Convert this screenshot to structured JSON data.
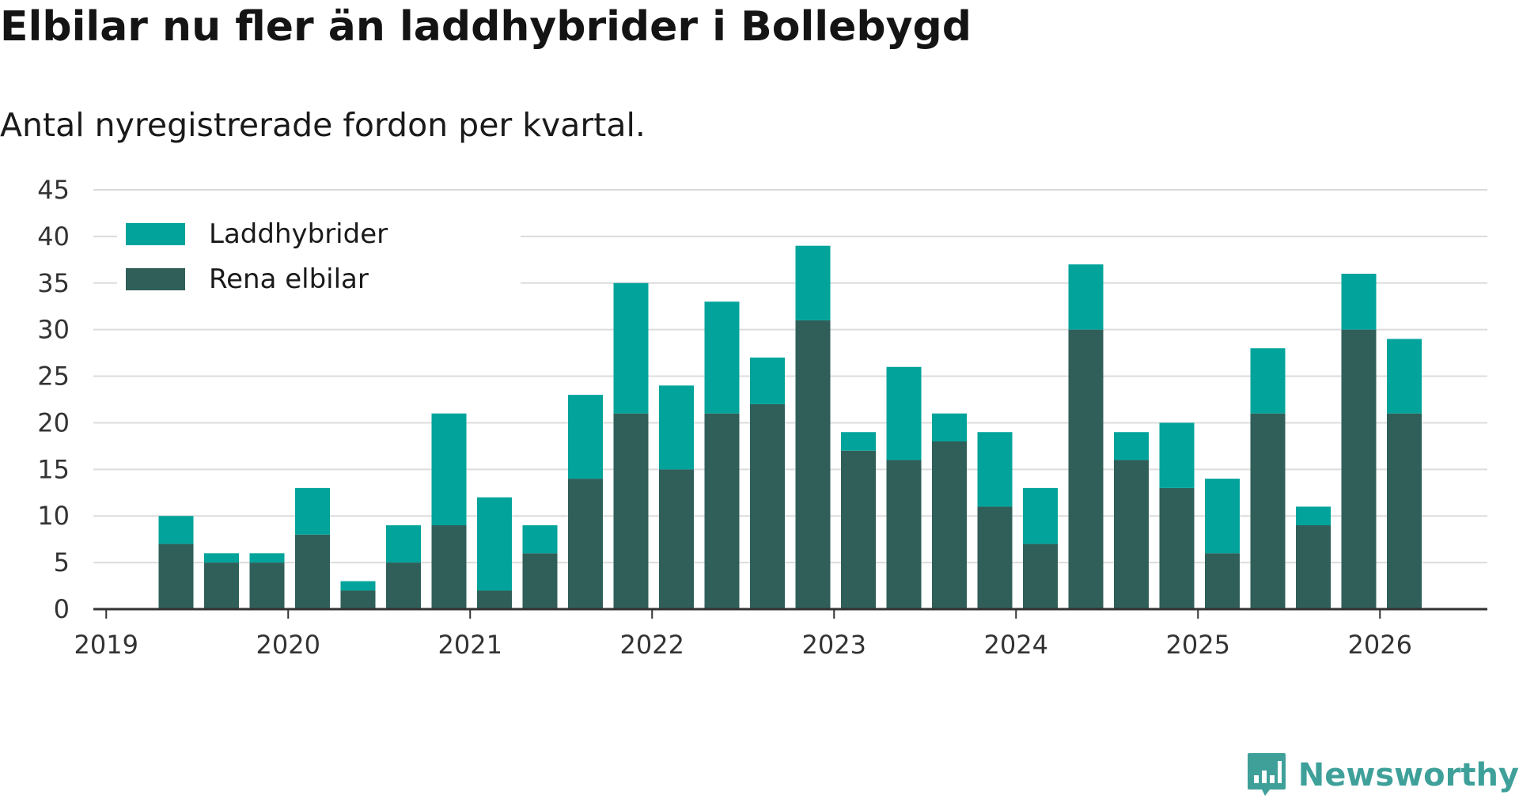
{
  "title": "Elbilar nu fler än laddhybrider i Bollebygd",
  "subtitle": "Antal nyregistrerade fordon per kvartal.",
  "logo": {
    "text": "Newsworthy",
    "icon": "bar-chart-speech-bubble-icon"
  },
  "colors": {
    "plugin_hybrid": "#02a39b",
    "electric": "#2f5f58",
    "grid": "#dcdcdc",
    "axis": "#333333"
  },
  "chart_data": {
    "type": "bar",
    "stacked": true,
    "title": "Elbilar nu fler än laddhybrider i Bollebygd",
    "subtitle": "Antal nyregistrerade fordon per kvartal.",
    "xlabel": "",
    "ylabel": "",
    "ylim": [
      0,
      45
    ],
    "y_ticks": [
      "0",
      "5",
      "10",
      "15",
      "20",
      "25",
      "30",
      "35",
      "40",
      "45"
    ],
    "x_ticks": [
      "2019",
      "2020",
      "2021",
      "2022",
      "2023",
      "2024",
      "2025",
      "2026"
    ],
    "legend_position": "top-left",
    "grid": true,
    "categories": [
      "2019-Q2",
      "2019-Q3",
      "2019-Q4",
      "2020-Q1",
      "2020-Q2",
      "2020-Q3",
      "2020-Q4",
      "2021-Q1",
      "2021-Q2",
      "2021-Q3",
      "2021-Q4",
      "2022-Q1",
      "2022-Q2",
      "2022-Q3",
      "2022-Q4",
      "2023-Q1",
      "2023-Q2",
      "2023-Q3",
      "2023-Q4",
      "2024-Q1",
      "2024-Q2",
      "2024-Q3",
      "2024-Q4",
      "2025-Q1",
      "2025-Q2",
      "2025-Q3",
      "2025-Q4",
      "2026-Q1"
    ],
    "series": [
      {
        "name": "Rena elbilar",
        "color": "#2f5f58",
        "values": [
          7,
          5,
          5,
          8,
          2,
          5,
          9,
          2,
          6,
          14,
          21,
          15,
          21,
          22,
          31,
          17,
          16,
          18,
          11,
          7,
          30,
          16,
          13,
          6,
          21,
          9,
          30,
          21
        ]
      },
      {
        "name": "Laddhybrider",
        "color": "#02a39b",
        "values": [
          3,
          1,
          1,
          5,
          1,
          4,
          12,
          10,
          3,
          9,
          14,
          9,
          12,
          5,
          8,
          2,
          10,
          3,
          8,
          6,
          7,
          3,
          7,
          8,
          7,
          2,
          6,
          8
        ]
      }
    ]
  }
}
